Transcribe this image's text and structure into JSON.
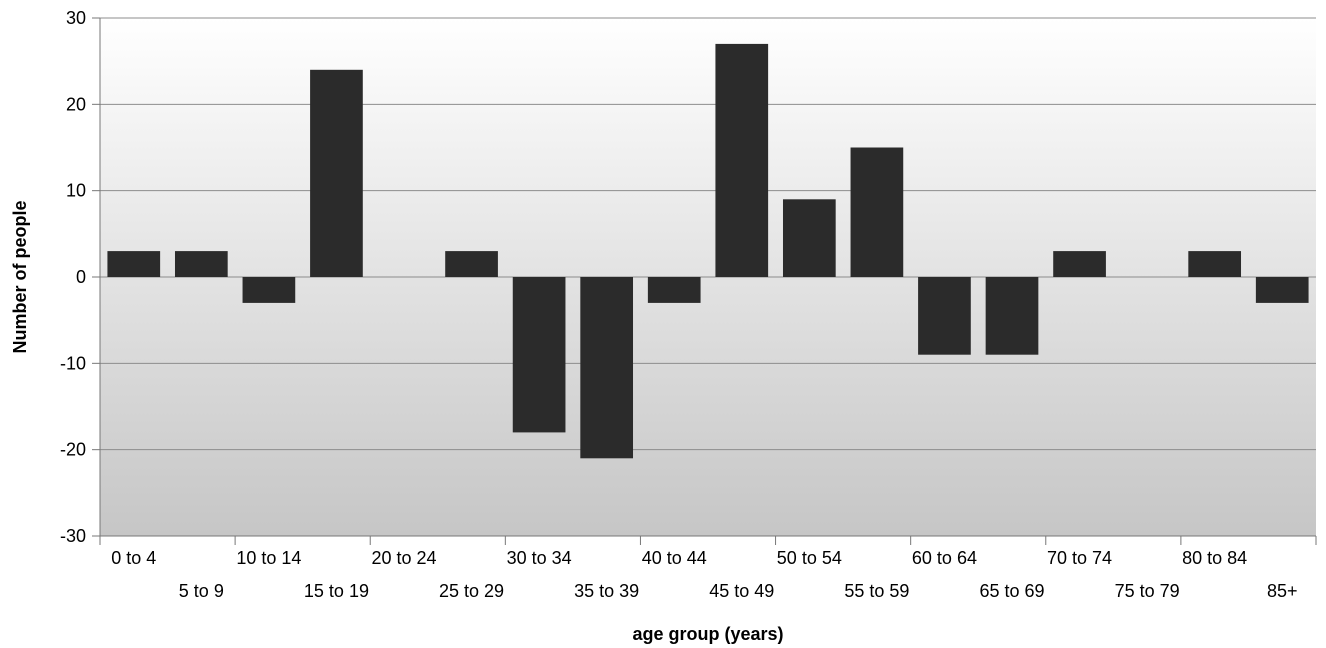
{
  "chart_data": {
    "type": "bar",
    "title": "",
    "xlabel": "age group (years)",
    "ylabel": "Number of people",
    "ylim": [
      -30,
      30
    ],
    "yticks": [
      -30,
      -20,
      -10,
      0,
      10,
      20,
      30
    ],
    "grid": true,
    "legend": "none",
    "categories": [
      "0 to 4",
      "5 to 9",
      "10 to 14",
      "15 to 19",
      "20 to 24",
      "25 to 29",
      "30 to 34",
      "35 to 39",
      "40 to 44",
      "45 to 49",
      "50 to 54",
      "55 to 59",
      "60 to 64",
      "65 to 69",
      "70 to 74",
      "75 to 79",
      "80 to 84",
      "85+"
    ],
    "values": [
      3,
      3,
      -3,
      24,
      0,
      3,
      -18,
      -21,
      -3,
      27,
      9,
      15,
      -9,
      -9,
      3,
      0,
      3,
      -3
    ],
    "bar_color": "#2b2b2b",
    "background_gradient": [
      "#ffffff",
      "#c6c6c6"
    ],
    "gridline_color": "#8c8c8c"
  }
}
